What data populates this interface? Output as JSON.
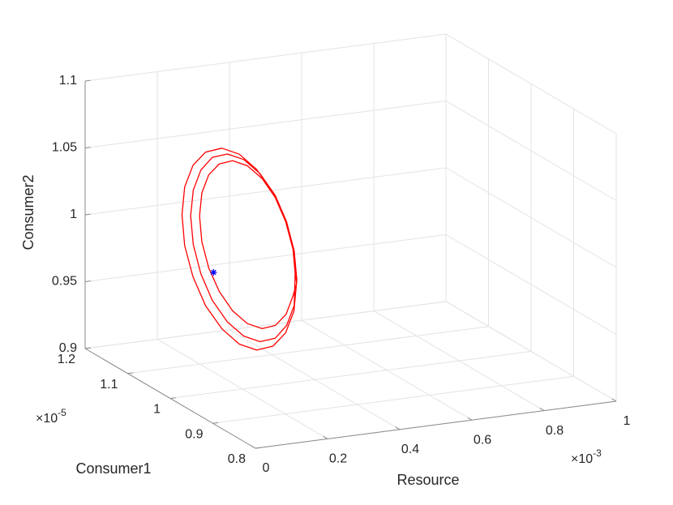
{
  "chart_data": {
    "type": "line3d",
    "xlabel": "Resource",
    "ylabel": "Consumer1",
    "zlabel": "Consumer2",
    "xlim": [
      0,
      1
    ],
    "ylim": [
      0.8,
      1.2
    ],
    "zlim": [
      0.9,
      1.1
    ],
    "xticks": [
      0,
      0.2,
      0.4,
      0.6,
      0.8,
      1
    ],
    "yticks": [
      0.8,
      0.9,
      1,
      1.1,
      1.2
    ],
    "zticks": [
      0.9,
      0.95,
      1,
      1.05,
      1.1
    ],
    "x_exponent": {
      "base": "×10",
      "power": "-3"
    },
    "y_exponent": {
      "base": "×10",
      "power": "-5"
    },
    "grid": true,
    "series": [
      {
        "color": "#ff0000",
        "x": [
          0.28,
          0.275,
          0.261,
          0.239,
          0.211,
          0.18,
          0.149,
          0.121,
          0.099,
          0.085,
          0.08,
          0.085,
          0.099,
          0.121,
          0.149,
          0.18,
          0.211,
          0.239,
          0.261,
          0.275,
          0.28,
          0.276,
          0.263,
          0.243,
          0.218,
          0.19,
          0.162,
          0.137,
          0.117,
          0.104,
          0.1,
          0.104,
          0.117,
          0.137,
          0.162,
          0.19,
          0.218,
          0.243,
          0.263,
          0.276,
          0.278,
          0.273,
          0.257,
          0.234,
          0.203,
          0.17,
          0.137,
          0.106,
          0.083,
          0.067,
          0.062,
          0.067,
          0.083,
          0.106,
          0.137,
          0.17,
          0.203,
          0.234,
          0.257,
          0.273,
          0.28
        ],
        "y": [
          0.94,
          0.942,
          0.948,
          0.956,
          0.968,
          0.98,
          0.992,
          1.004,
          1.012,
          1.018,
          1.02,
          1.018,
          1.012,
          1.004,
          0.992,
          0.98,
          0.968,
          0.956,
          0.948,
          0.942,
          0.944,
          0.946,
          0.951,
          0.959,
          0.969,
          0.98,
          0.991,
          1.001,
          1.009,
          1.014,
          1.016,
          1.014,
          1.009,
          1.001,
          0.991,
          0.98,
          0.969,
          0.959,
          0.951,
          0.946,
          0.939,
          0.941,
          0.947,
          0.957,
          0.969,
          0.982,
          0.995,
          1.007,
          1.017,
          1.023,
          1.025,
          1.023,
          1.017,
          1.007,
          0.995,
          0.982,
          0.969,
          0.957,
          0.947,
          0.941,
          0.94
        ],
        "z": [
          0.99,
          1.0114,
          1.0326,
          1.0516,
          1.0666,
          1.076,
          1.079,
          1.0752,
          1.065,
          1.0494,
          1.03,
          1.0086,
          0.9874,
          0.9684,
          0.9534,
          0.944,
          0.941,
          0.9448,
          0.955,
          0.9706,
          0.994,
          1.0131,
          1.0321,
          1.0491,
          1.0625,
          1.071,
          1.0737,
          1.0703,
          1.0613,
          1.0473,
          1.03,
          1.0109,
          0.9919,
          0.9749,
          0.9615,
          0.953,
          0.9503,
          0.9537,
          0.9627,
          0.9767,
          0.9874,
          1.0104,
          1.0332,
          1.0537,
          1.0698,
          1.08,
          1.0832,
          1.0791,
          1.0682,
          1.0514,
          1.0306,
          1.0076,
          0.9848,
          0.9643,
          0.9482,
          0.938,
          0.9348,
          0.9389,
          0.9498,
          0.9666,
          0.99
        ]
      }
    ],
    "markers": [
      {
        "color": "#0000ff",
        "symbol": "*",
        "x": 0.12,
        "y": 1,
        "z": 0.99
      }
    ]
  }
}
